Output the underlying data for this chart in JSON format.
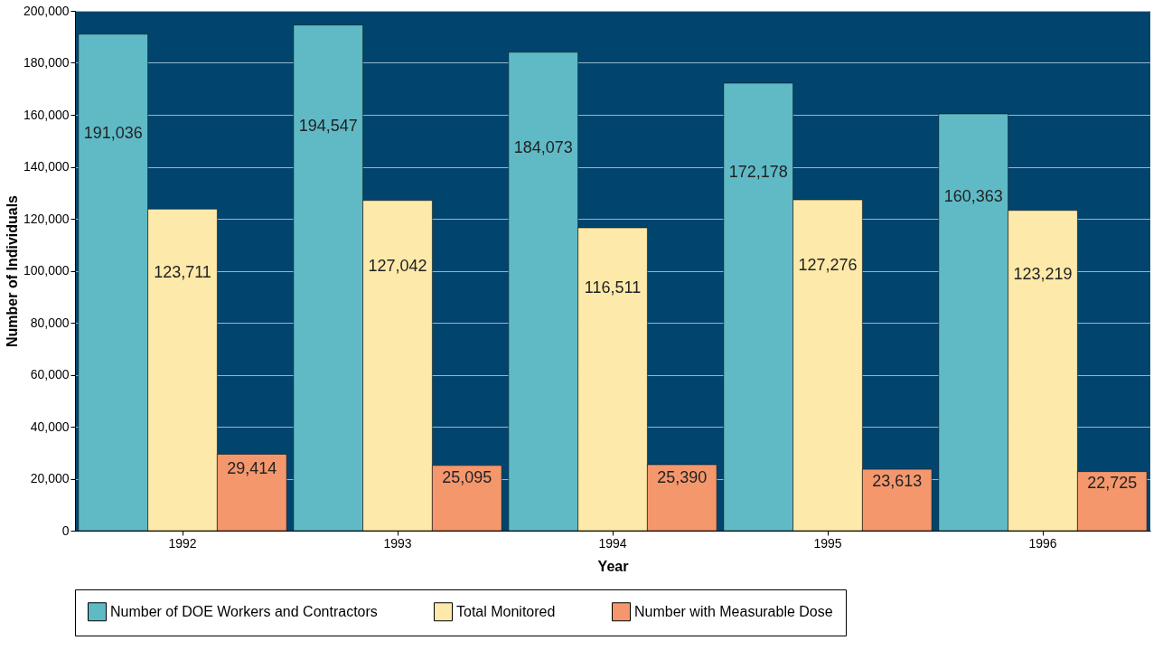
{
  "chart_data": {
    "type": "bar",
    "xlabel": "Year",
    "ylabel": "Number of Individuals",
    "categories": [
      "1992",
      "1993",
      "1994",
      "1995",
      "1996"
    ],
    "series": [
      {
        "name": "Number of DOE Workers and Contractors",
        "color": "#5fbac6",
        "values": [
          191036,
          194547,
          184073,
          172178,
          160363
        ],
        "value_labels": [
          "191,036",
          "194,547",
          "184,073",
          "172,178",
          "160,363"
        ]
      },
      {
        "name": "Total Monitored",
        "color": "#fde9a9",
        "values": [
          123711,
          127042,
          116511,
          127276,
          123219
        ],
        "value_labels": [
          "123,711",
          "127,042",
          "116,511",
          "127,276",
          "123,219"
        ]
      },
      {
        "name": "Number with Measurable Dose",
        "color": "#f4976c",
        "values": [
          29414,
          25095,
          25390,
          23613,
          22725
        ],
        "value_labels": [
          "29,414",
          "25,095",
          "25,390",
          "23,613",
          "22,725"
        ]
      }
    ],
    "ylim": [
      0,
      200000
    ],
    "yticks": [
      0,
      {
        "value": 20000,
        "label": "20,000"
      },
      {
        "value": 40000,
        "label": "40,000"
      },
      {
        "value": 60000,
        "label": "60,000"
      },
      {
        "value": 80000,
        "label": "80,000"
      },
      {
        "value": 100000,
        "label": "100,000"
      },
      {
        "value": 120000,
        "label": "120,000"
      },
      {
        "value": 140000,
        "label": "140,000"
      },
      {
        "value": 160000,
        "label": "160,000"
      },
      {
        "value": 180000,
        "label": "180,000"
      },
      {
        "value": 200000,
        "label": "200,000"
      }
    ],
    "grid": "y",
    "legend": "bottom"
  }
}
